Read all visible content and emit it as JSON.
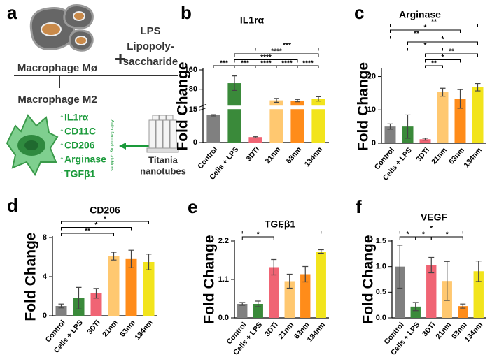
{
  "panel_labels": [
    "a",
    "b",
    "c",
    "d",
    "e",
    "f"
  ],
  "diagram": {
    "cell_label": "Macrophage Mø",
    "plus": "+",
    "stimulus": [
      "LPS",
      "Lipopoly-",
      "saccharide"
    ],
    "result_label": "Macrophage M2",
    "markers": [
      "↑IL1rα",
      "↑CD11C",
      "↑CD206",
      "↑Arginase",
      "↑TGFβ1"
    ],
    "side_note": "Anti-inflammatory cytokines",
    "material": [
      "Titania",
      "nanotubes"
    ]
  },
  "chart_data": [
    {
      "type": "bar",
      "title": "IL1rα",
      "y_label": "Fold Change",
      "categories": [
        "Control",
        "Cells + LPS",
        "3DTi",
        "21nm",
        "63nm",
        "134nm"
      ],
      "values": [
        12.5,
        105,
        2.5,
        34,
        33,
        40
      ],
      "errors": [
        0.3,
        30,
        0.3,
        8,
        5,
        9
      ],
      "colors": [
        "#808080",
        "#3a8a3a",
        "#f06474",
        "#ffc870",
        "#ff8c1a",
        "#f2e41c"
      ],
      "ylim": [
        0,
        160
      ],
      "yticks": [
        0,
        15,
        80,
        160
      ],
      "axis_break": 15,
      "significance": [
        {
          "between": [
            "Control",
            "Cells + LPS"
          ],
          "label": "***"
        },
        {
          "between": [
            "Cells + LPS",
            "3DTi"
          ],
          "label": "***"
        },
        {
          "between": [
            "3DTi",
            "21nm"
          ],
          "label": "****"
        },
        {
          "between": [
            "21nm",
            "63nm"
          ],
          "label": "****"
        },
        {
          "between": [
            "Cells + LPS",
            "63nm"
          ],
          "label": "****"
        },
        {
          "between": [
            "63nm",
            "134nm"
          ],
          "label": "****"
        },
        {
          "between": [
            "Cells + LPS",
            "134nm"
          ],
          "label": "****"
        },
        {
          "between": [
            "3DTi",
            "134nm"
          ],
          "label": "***"
        }
      ]
    },
    {
      "type": "bar",
      "title": "Arginase",
      "y_label": "Fold Change",
      "categories": [
        "Control",
        "Cells + LPS",
        "3DTi",
        "21nm",
        "63nm",
        "134nm"
      ],
      "values": [
        5,
        5,
        1.2,
        15.3,
        13.3,
        16.8
      ],
      "errors": [
        0.8,
        3.5,
        0.3,
        1.2,
        2.8,
        1.1
      ],
      "colors": [
        "#808080",
        "#3a8a3a",
        "#f06474",
        "#ffc870",
        "#ff8c1a",
        "#f2e41c"
      ],
      "ylim": [
        0,
        22
      ],
      "yticks": [
        0,
        10,
        20
      ],
      "significance": [
        {
          "between": [
            "3DTi",
            "21nm"
          ],
          "label": "**"
        },
        {
          "between": [
            "3DTi",
            "63nm"
          ],
          "label": "*"
        },
        {
          "between": [
            "3DTi",
            "134nm"
          ],
          "label": "**"
        },
        {
          "between": [
            "Cells + LPS",
            "21nm"
          ],
          "label": "*"
        },
        {
          "between": [
            "Cells + LPS",
            "134nm"
          ],
          "label": "*"
        },
        {
          "between": [
            "Control",
            "21nm"
          ],
          "label": "**"
        },
        {
          "between": [
            "Control",
            "63nm"
          ],
          "label": "*"
        },
        {
          "between": [
            "Control",
            "134nm"
          ],
          "label": "**"
        }
      ]
    },
    {
      "type": "bar",
      "title": "CD206",
      "y_label": "Fold Change",
      "categories": [
        "Control",
        "Cells + LPS",
        "3DTi",
        "21nm",
        "63nm",
        "134nm"
      ],
      "values": [
        1,
        1.8,
        2.3,
        6.1,
        5.8,
        5.5
      ],
      "errors": [
        0.2,
        1.1,
        0.5,
        0.4,
        0.9,
        0.8
      ],
      "colors": [
        "#808080",
        "#3a8a3a",
        "#f06474",
        "#ffc870",
        "#ff8c1a",
        "#f2e41c"
      ],
      "ylim": [
        0,
        8
      ],
      "yticks": [
        0,
        4,
        8
      ],
      "significance": [
        {
          "between": [
            "Control",
            "21nm"
          ],
          "label": "**"
        },
        {
          "between": [
            "Control",
            "63nm"
          ],
          "label": "*"
        },
        {
          "between": [
            "Control",
            "134nm"
          ],
          "label": "*"
        }
      ]
    },
    {
      "type": "bar",
      "title": "TGFβ1",
      "y_label": "Fold Change",
      "categories": [
        "Control",
        "Cells + LPS",
        "3DTi",
        "21nm",
        "63nm",
        "134nm"
      ],
      "values": [
        0.4,
        0.4,
        1.45,
        1.05,
        1.25,
        1.9
      ],
      "errors": [
        0.04,
        0.08,
        0.22,
        0.2,
        0.22,
        0.05
      ],
      "colors": [
        "#808080",
        "#3a8a3a",
        "#f06474",
        "#ffc870",
        "#ff8c1a",
        "#f2e41c"
      ],
      "ylim": [
        0,
        2.2
      ],
      "yticks": [
        {
          "value": 0,
          "label": "0.0"
        },
        1.1,
        2.2
      ],
      "significance": [
        {
          "between": [
            "Control",
            "3DTi"
          ],
          "label": "*"
        },
        {
          "between": [
            "Control",
            "134nm"
          ],
          "label": "*"
        }
      ]
    },
    {
      "type": "bar",
      "title": "VEGF",
      "y_label": "Fold Change",
      "categories": [
        "Control",
        "Cells + LPS",
        "3DTi",
        "21nm",
        "63nm",
        "134nm"
      ],
      "values": [
        1.0,
        0.22,
        1.03,
        0.72,
        0.23,
        0.91
      ],
      "errors": [
        0.42,
        0.08,
        0.15,
        0.38,
        0.04,
        0.2
      ],
      "colors": [
        "#808080",
        "#3a8a3a",
        "#f06474",
        "#ffc870",
        "#ff8c1a",
        "#f2e41c"
      ],
      "ylim": [
        0,
        1.5
      ],
      "yticks": [
        {
          "value": 0,
          "label": "0.0"
        },
        0.5,
        {
          "value": 1,
          "label": "1.0"
        },
        1.5
      ],
      "significance": [
        {
          "between": [
            "Control",
            "Cells + LPS"
          ],
          "label": "*"
        },
        {
          "between": [
            "Cells + LPS",
            "3DTi"
          ],
          "label": "*"
        },
        {
          "between": [
            "3DTi",
            "63nm"
          ],
          "label": "*"
        },
        {
          "between": [
            "Control",
            "63nm"
          ],
          "label": "*"
        }
      ]
    }
  ]
}
